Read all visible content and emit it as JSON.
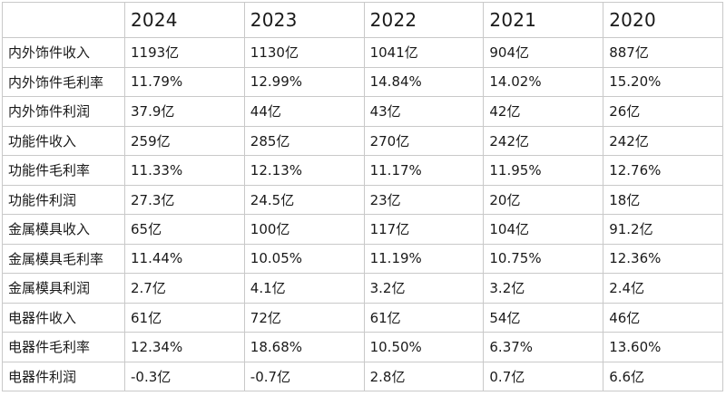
{
  "table": {
    "corner": "",
    "years": [
      "2024",
      "2023",
      "2022",
      "2021",
      "2020"
    ],
    "rows": [
      {
        "label": "内外饰件收入",
        "values": [
          "1193亿",
          "1130亿",
          "1041亿",
          "904亿",
          "887亿"
        ]
      },
      {
        "label": "内外饰件毛利率",
        "values": [
          "11.79%",
          "12.99%",
          "14.84%",
          "14.02%",
          "15.20%"
        ]
      },
      {
        "label": "内外饰件利润",
        "values": [
          "37.9亿",
          "44亿",
          "43亿",
          "42亿",
          "26亿"
        ]
      },
      {
        "label": "功能件收入",
        "values": [
          "259亿",
          "285亿",
          "270亿",
          "242亿",
          "242亿"
        ]
      },
      {
        "label": "功能件毛利率",
        "values": [
          "11.33%",
          "12.13%",
          "11.17%",
          "11.95%",
          "12.76%"
        ]
      },
      {
        "label": "功能件利润",
        "values": [
          "27.3亿",
          "24.5亿",
          "23亿",
          "20亿",
          "18亿"
        ]
      },
      {
        "label": "金属模具收入",
        "values": [
          "65亿",
          "100亿",
          "117亿",
          "104亿",
          "91.2亿"
        ]
      },
      {
        "label": "金属模具毛利率",
        "values": [
          "11.44%",
          "10.05%",
          "11.19%",
          "10.75%",
          "12.36%"
        ]
      },
      {
        "label": "金属模具利润",
        "values": [
          "2.7亿",
          "4.1亿",
          "3.2亿",
          "3.2亿",
          "2.4亿"
        ]
      },
      {
        "label": "电器件收入",
        "values": [
          "61亿",
          "72亿",
          "61亿",
          "54亿",
          "46亿"
        ]
      },
      {
        "label": "电器件毛利率",
        "values": [
          "12.34%",
          "18.68%",
          "10.50%",
          "6.37%",
          "13.60%"
        ]
      },
      {
        "label": "电器件利润",
        "values": [
          "-0.3亿",
          "-0.7亿",
          "2.8亿",
          "0.7亿",
          "6.6亿"
        ]
      }
    ]
  }
}
